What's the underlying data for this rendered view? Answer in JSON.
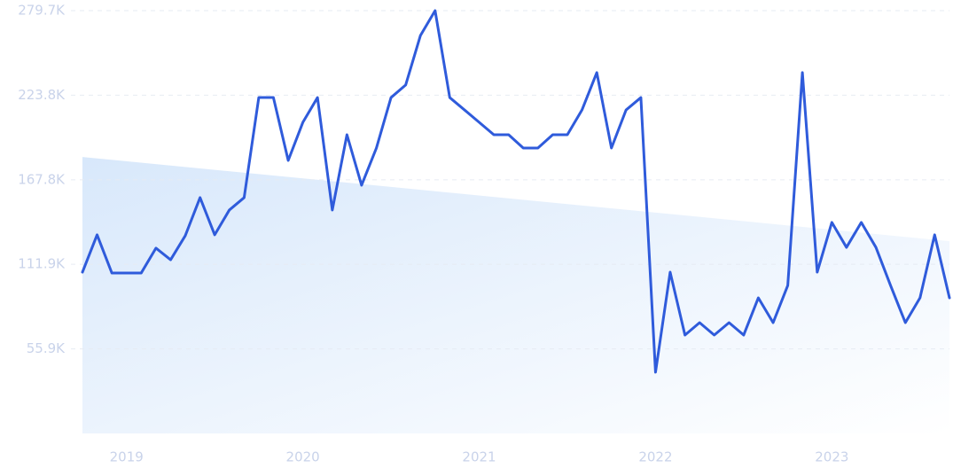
{
  "chart_data": {
    "type": "line",
    "x": [
      2018.75,
      2018.833,
      2018.917,
      2019.0,
      2019.083,
      2019.167,
      2019.25,
      2019.333,
      2019.417,
      2019.5,
      2019.583,
      2019.667,
      2019.75,
      2019.833,
      2019.917,
      2020.0,
      2020.083,
      2020.167,
      2020.25,
      2020.333,
      2020.417,
      2020.5,
      2020.583,
      2020.667,
      2020.75,
      2020.833,
      2020.917,
      2021.0,
      2021.083,
      2021.167,
      2021.25,
      2021.333,
      2021.417,
      2021.5,
      2021.583,
      2021.667,
      2021.75,
      2021.833,
      2021.917,
      2022.0,
      2022.083,
      2022.167,
      2022.25,
      2022.333,
      2022.417,
      2022.5,
      2022.583,
      2022.667,
      2022.75,
      2022.833,
      2022.917,
      2023.0,
      2023.083,
      2023.167,
      2023.25,
      2023.333,
      2023.417,
      2023.5,
      2023.583,
      2023.667
    ],
    "series": [
      {
        "color": "#2f5bdb",
        "values": [
          106700,
          131400,
          106100,
          106100,
          106100,
          122600,
          114900,
          130800,
          156000,
          131400,
          147800,
          156000,
          222200,
          222200,
          180600,
          205800,
          222200,
          147800,
          197600,
          164200,
          188800,
          222200,
          230500,
          263300,
          279700,
          222200,
          214000,
          205800,
          197600,
          197600,
          188800,
          188800,
          197600,
          197600,
          214000,
          238700,
          188800,
          214000,
          222200,
          40500,
          106700,
          65100,
          73300,
          65100,
          73300,
          65100,
          89700,
          73300,
          97900,
          238700,
          106700,
          139600,
          123100,
          139600,
          123100,
          97900,
          73300,
          89700,
          131400,
          89700
        ]
      }
    ],
    "trend": [
      182900,
      127200
    ],
    "trend_color": "#d8e8fb",
    "xlim": [
      2018.75,
      2023.667
    ],
    "xticks": [
      2019,
      2020,
      2021,
      2022,
      2023
    ],
    "ylim": [
      0,
      279700
    ],
    "yticks": [
      {
        "value": 55900,
        "label": "55.9K"
      },
      {
        "value": 111900,
        "label": "111.9K"
      },
      {
        "value": 167800,
        "label": "167.8K"
      },
      {
        "value": 223800,
        "label": "223.8K"
      },
      {
        "value": 279700,
        "label": "279.7K"
      }
    ],
    "grid": true
  }
}
